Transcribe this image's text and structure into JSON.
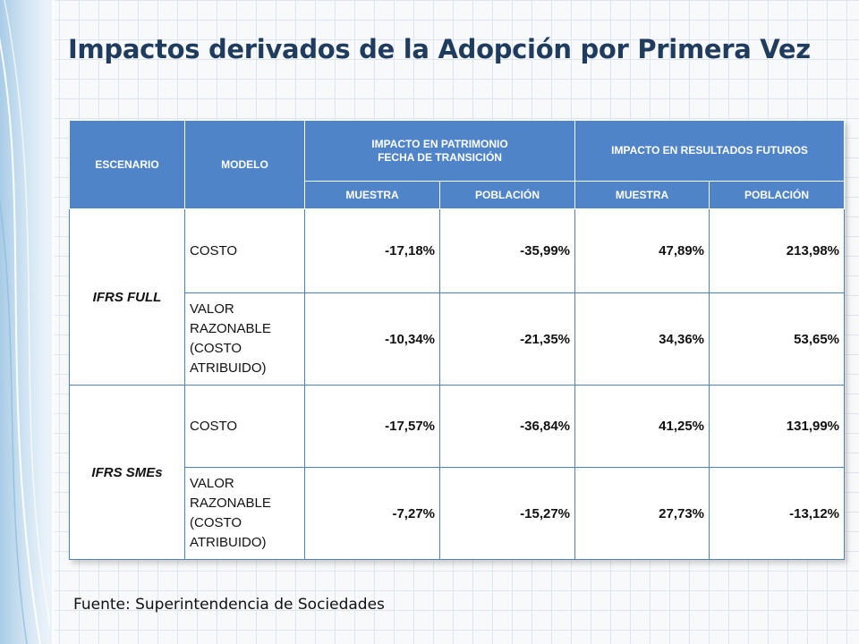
{
  "title": "Impactos derivados de la Adopción por Primera Vez",
  "table": {
    "headers": {
      "escenario": "ESCENARIO",
      "modelo": "MODELO",
      "patrimonio_line1": "IMPACTO EN PATRIMONIO",
      "patrimonio_line2": "FECHA DE TRANSICIÓN",
      "resultados": "IMPACTO EN RESULTADOS FUTUROS",
      "sub": [
        "MUESTRA",
        "POBLACIÓN",
        "MUESTRA",
        "POBLACIÓN"
      ]
    },
    "groups": [
      {
        "scenario": "IFRS FULL",
        "rows": [
          {
            "model": "COSTO",
            "values": [
              "-17,18%",
              "-35,99%",
              "47,89%",
              "213,98%"
            ]
          },
          {
            "model": "VALOR RAZONABLE (COSTO ATRIBUIDO)",
            "values": [
              "-10,34%",
              "-21,35%",
              "34,36%",
              "53,65%"
            ]
          }
        ]
      },
      {
        "scenario": "IFRS SMEs",
        "rows": [
          {
            "model": "COSTO",
            "values": [
              "-17,57%",
              "-36,84%",
              "41,25%",
              "131,99%"
            ]
          },
          {
            "model": "VALOR RAZONABLE (COSTO ATRIBUIDO)",
            "values": [
              "-7,27%",
              "-15,27%",
              "27,73%",
              "-13,12%"
            ]
          }
        ]
      }
    ]
  },
  "source": "Fuente: Superintendencia de Sociedades",
  "colors": {
    "header_bg": "#4f84c9",
    "negative": "#e8201e",
    "title": "#1f3c5f"
  }
}
